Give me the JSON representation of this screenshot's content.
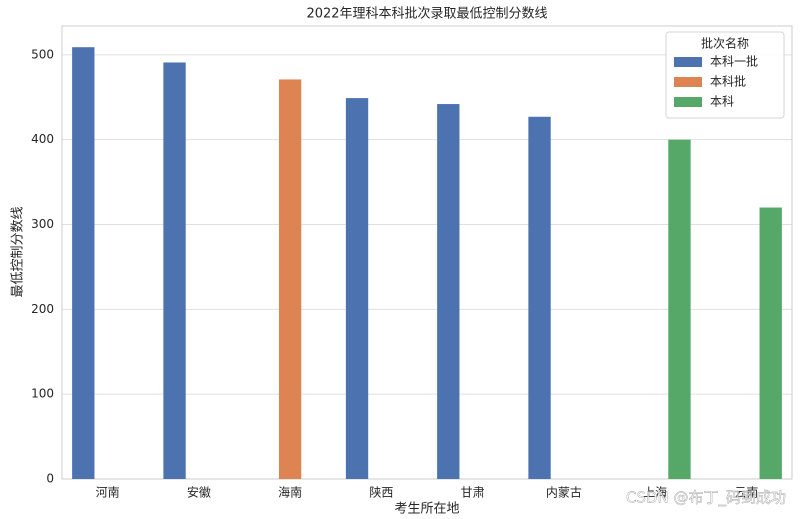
{
  "chart_data": {
    "type": "bar",
    "title": "2022年理科本科批次录取最低控制分数线",
    "x_label": "考生所在地",
    "y_label": "最低控制分数线",
    "categories": [
      "河南",
      "安徽",
      "海南",
      "陕西",
      "甘肃",
      "内蒙古",
      "上海",
      "云南"
    ],
    "series": [
      {
        "name": "本科一批",
        "color": "#4c72b0",
        "values": [
          509,
          491,
          null,
          449,
          442,
          427,
          null,
          null
        ]
      },
      {
        "name": "本科批",
        "color": "#dd8452",
        "values": [
          null,
          null,
          471,
          null,
          null,
          null,
          null,
          null
        ]
      },
      {
        "name": "本科",
        "color": "#55a868",
        "values": [
          null,
          null,
          null,
          null,
          null,
          null,
          400,
          320
        ]
      }
    ],
    "legend_title": "批次名称",
    "legend_position": "upper right",
    "ylim": [
      0,
      534
    ],
    "yticks": [
      0,
      100,
      200,
      300,
      400,
      500
    ],
    "grid": true,
    "watermark": "CSDN @布丁_码到成功"
  }
}
